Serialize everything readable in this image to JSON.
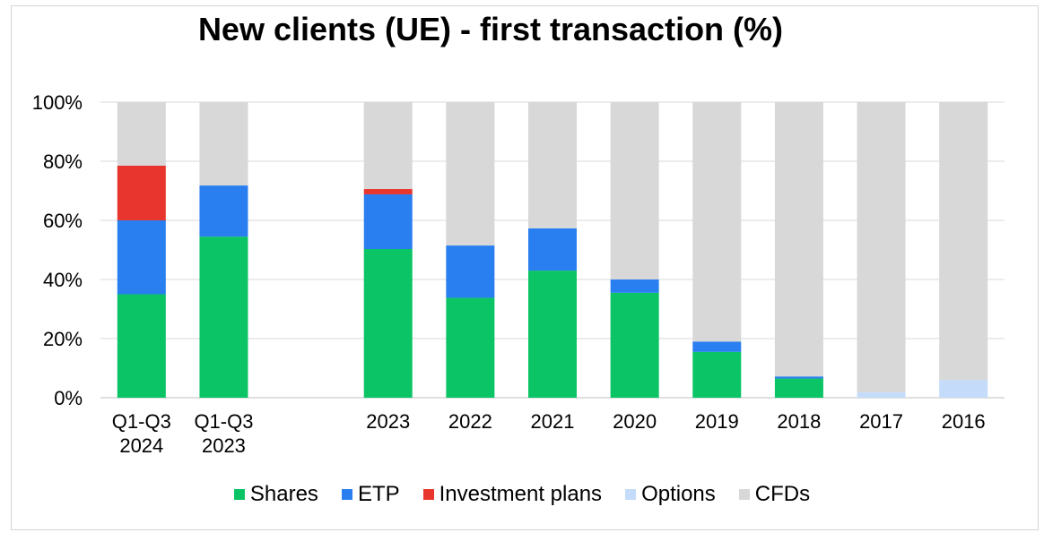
{
  "chart_data": {
    "type": "bar",
    "stacked": true,
    "title": "New clients (UE) - first transaction (%)",
    "xlabel": "",
    "ylabel": "",
    "ylim": [
      0,
      100
    ],
    "yticks": [
      "0%",
      "20%",
      "40%",
      "60%",
      "80%",
      "100%"
    ],
    "grid": true,
    "legend_position": "bottom",
    "categories": [
      [
        "Q1-Q3",
        "2024"
      ],
      [
        "Q1-Q3",
        "2023"
      ],
      null,
      [
        "2023"
      ],
      [
        "2022"
      ],
      [
        "2021"
      ],
      [
        "2020"
      ],
      [
        "2019"
      ],
      [
        "2018"
      ],
      [
        "2017"
      ],
      [
        "2016"
      ]
    ],
    "series": [
      {
        "name": "Shares",
        "color": "#0bc465",
        "values": [
          35,
          54.5,
          null,
          50.3,
          33.8,
          43,
          35.5,
          15.5,
          6.5,
          0,
          0
        ]
      },
      {
        "name": "ETP",
        "color": "#2a7ff0",
        "values": [
          25,
          17.3,
          null,
          18.5,
          17.7,
          14.3,
          4.5,
          3.5,
          0.7,
          0,
          0
        ]
      },
      {
        "name": "Investment plans",
        "color": "#e8352d",
        "values": [
          18.5,
          0,
          null,
          1.8,
          0,
          0,
          0,
          0,
          0,
          0,
          0
        ]
      },
      {
        "name": "Options",
        "color": "#c4dcfa",
        "values": [
          0,
          0,
          null,
          0,
          0,
          0,
          0,
          0,
          0,
          1.8,
          6
        ]
      },
      {
        "name": "CFDs",
        "color": "#d8d8d8",
        "values": [
          21.5,
          28.2,
          null,
          29.4,
          48.5,
          42.7,
          60,
          81,
          92.8,
          98.2,
          94
        ]
      }
    ]
  }
}
